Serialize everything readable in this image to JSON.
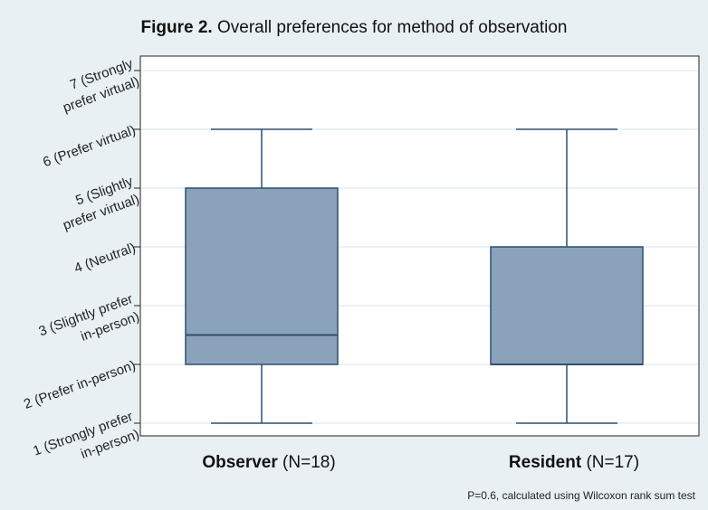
{
  "chart_data": {
    "type": "box",
    "title_bold": "Figure 2.",
    "title": "Overall preferences for method of observation",
    "ylim": [
      1,
      7
    ],
    "y_ticks": [
      {
        "value": 7,
        "lines": [
          "7 (Strongly",
          "prefer virtual)"
        ]
      },
      {
        "value": 6,
        "lines": [
          "6 (Prefer virtual)"
        ]
      },
      {
        "value": 5,
        "lines": [
          "5 (Slightly",
          "prefer virtual)"
        ]
      },
      {
        "value": 4,
        "lines": [
          "4 (Neutral)"
        ]
      },
      {
        "value": 3,
        "lines": [
          "3 (Slightly prefer",
          "in-person)"
        ]
      },
      {
        "value": 2,
        "lines": [
          "2 (Prefer in-person)"
        ]
      },
      {
        "value": 1,
        "lines": [
          "1 (Strongly prefer",
          "in-person)"
        ]
      }
    ],
    "grid": true,
    "series": [
      {
        "name_bold": "Observer",
        "name": "(N=18)",
        "whisker_low": 1,
        "q1": 2,
        "median": 2.5,
        "q3": 5,
        "whisker_high": 6
      },
      {
        "name_bold": "Resident",
        "name": "(N=17)",
        "whisker_low": 1,
        "q1": 2,
        "median": 2,
        "q3": 4,
        "whisker_high": 6
      }
    ],
    "colors": {
      "box_fill": "#8aa3bb",
      "box_stroke": "#2f4f6f",
      "grid": "#d7e3e9",
      "plot_bg": "#ffffff"
    }
  },
  "footnote": "P=0.6, calculated using Wilcoxon rank sum test"
}
